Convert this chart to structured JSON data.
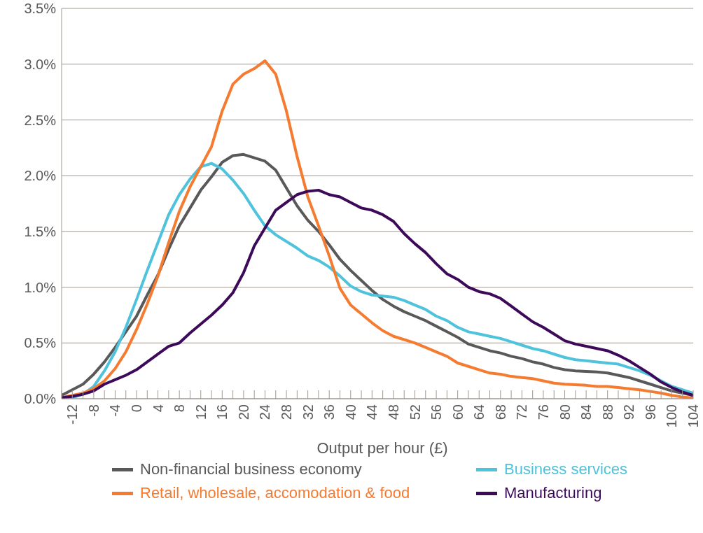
{
  "chart_data": {
    "type": "line",
    "xlabel": "Output per hour (£)",
    "x": [
      -14,
      -12,
      -10,
      -8,
      -6,
      -4,
      -2,
      0,
      2,
      4,
      6,
      8,
      10,
      12,
      14,
      16,
      18,
      20,
      22,
      24,
      26,
      28,
      30,
      32,
      34,
      36,
      38,
      40,
      42,
      44,
      46,
      48,
      50,
      52,
      54,
      56,
      58,
      60,
      62,
      64,
      66,
      68,
      70,
      72,
      74,
      76,
      78,
      80,
      82,
      84,
      86,
      88,
      90,
      92,
      94,
      96,
      98,
      100,
      102,
      104
    ],
    "series": [
      {
        "name": "Non-financial business economy",
        "color": "#595959",
        "values": [
          0.03,
          0.08,
          0.13,
          0.22,
          0.33,
          0.46,
          0.6,
          0.74,
          0.93,
          1.11,
          1.34,
          1.55,
          1.71,
          1.87,
          1.99,
          2.12,
          2.18,
          2.19,
          2.16,
          2.13,
          2.05,
          1.89,
          1.73,
          1.6,
          1.5,
          1.38,
          1.25,
          1.15,
          1.06,
          0.97,
          0.89,
          0.83,
          0.78,
          0.74,
          0.7,
          0.65,
          0.6,
          0.55,
          0.49,
          0.46,
          0.43,
          0.41,
          0.38,
          0.36,
          0.33,
          0.31,
          0.28,
          0.26,
          0.25,
          0.245,
          0.24,
          0.23,
          0.21,
          0.19,
          0.16,
          0.13,
          0.1,
          0.07,
          0.05,
          0.03
        ]
      },
      {
        "name": "Business services",
        "color": "#4fc3dc",
        "values": [
          0.0,
          0.01,
          0.04,
          0.11,
          0.25,
          0.42,
          0.64,
          0.89,
          1.15,
          1.4,
          1.65,
          1.83,
          1.97,
          2.08,
          2.11,
          2.06,
          1.96,
          1.84,
          1.69,
          1.55,
          1.47,
          1.41,
          1.35,
          1.28,
          1.24,
          1.18,
          1.1,
          1.01,
          0.96,
          0.93,
          0.92,
          0.91,
          0.88,
          0.84,
          0.8,
          0.74,
          0.7,
          0.64,
          0.6,
          0.58,
          0.56,
          0.54,
          0.51,
          0.48,
          0.45,
          0.43,
          0.4,
          0.37,
          0.35,
          0.34,
          0.33,
          0.32,
          0.31,
          0.28,
          0.25,
          0.21,
          0.16,
          0.11,
          0.08,
          0.05
        ]
      },
      {
        "name": "Retail, wholesale, accomodation & food",
        "color": "#f47b30",
        "values": [
          0.01,
          0.03,
          0.05,
          0.09,
          0.16,
          0.27,
          0.42,
          0.62,
          0.85,
          1.1,
          1.4,
          1.68,
          1.9,
          2.08,
          2.26,
          2.58,
          2.82,
          2.91,
          2.96,
          3.03,
          2.91,
          2.58,
          2.17,
          1.81,
          1.55,
          1.28,
          0.99,
          0.84,
          0.76,
          0.68,
          0.61,
          0.56,
          0.53,
          0.5,
          0.46,
          0.42,
          0.38,
          0.32,
          0.29,
          0.26,
          0.23,
          0.22,
          0.2,
          0.19,
          0.18,
          0.16,
          0.14,
          0.13,
          0.125,
          0.12,
          0.11,
          0.11,
          0.1,
          0.09,
          0.08,
          0.065,
          0.05,
          0.03,
          0.015,
          0.005
        ]
      },
      {
        "name": "Manufacturing",
        "color": "#3d0a5a",
        "values": [
          0.01,
          0.02,
          0.04,
          0.07,
          0.13,
          0.17,
          0.21,
          0.26,
          0.33,
          0.4,
          0.47,
          0.5,
          0.59,
          0.67,
          0.75,
          0.84,
          0.95,
          1.13,
          1.37,
          1.53,
          1.69,
          1.76,
          1.83,
          1.86,
          1.87,
          1.83,
          1.81,
          1.76,
          1.71,
          1.69,
          1.65,
          1.59,
          1.48,
          1.39,
          1.31,
          1.21,
          1.12,
          1.07,
          1.0,
          0.96,
          0.94,
          0.9,
          0.83,
          0.76,
          0.69,
          0.64,
          0.58,
          0.52,
          0.49,
          0.47,
          0.45,
          0.43,
          0.39,
          0.34,
          0.28,
          0.22,
          0.15,
          0.1,
          0.06,
          0.03
        ]
      }
    ],
    "xlim": [
      -14,
      104
    ],
    "xticks": [
      {
        "value": -14,
        "label": null
      },
      -12,
      {
        "value": -10,
        "label": null
      },
      -8,
      {
        "value": -6,
        "label": null
      },
      -4,
      {
        "value": -2,
        "label": null
      },
      0,
      {
        "value": 2,
        "label": null
      },
      4,
      {
        "value": 6,
        "label": null
      },
      8,
      {
        "value": 10,
        "label": null
      },
      12,
      {
        "value": 14,
        "label": null
      },
      16,
      {
        "value": 18,
        "label": null
      },
      20,
      {
        "value": 22,
        "label": null
      },
      24,
      {
        "value": 26,
        "label": null
      },
      28,
      {
        "value": 30,
        "label": null
      },
      32,
      {
        "value": 34,
        "label": null
      },
      36,
      {
        "value": 38,
        "label": null
      },
      40,
      {
        "value": 42,
        "label": null
      },
      44,
      {
        "value": 46,
        "label": null
      },
      48,
      {
        "value": 50,
        "label": null
      },
      52,
      {
        "value": 54,
        "label": null
      },
      56,
      {
        "value": 58,
        "label": null
      },
      60,
      {
        "value": 62,
        "label": null
      },
      64,
      {
        "value": 66,
        "label": null
      },
      68,
      {
        "value": 70,
        "label": null
      },
      72,
      {
        "value": 74,
        "label": null
      },
      76,
      {
        "value": 78,
        "label": null
      },
      80,
      {
        "value": 82,
        "label": null
      },
      84,
      {
        "value": 86,
        "label": null
      },
      88,
      {
        "value": 90,
        "label": null
      },
      92,
      {
        "value": 94,
        "label": null
      },
      96,
      {
        "value": 98,
        "label": null
      },
      100,
      {
        "value": 102,
        "label": null
      },
      104
    ],
    "ylim": [
      0,
      3.5
    ],
    "yticks": [
      {
        "value": 0,
        "label": "0.0%"
      },
      {
        "value": 0.5,
        "label": "0.5%"
      },
      {
        "value": 1,
        "label": "1.0%"
      },
      {
        "value": 1.5,
        "label": "1.5%"
      },
      {
        "value": 2,
        "label": "2.0%"
      },
      {
        "value": 2.5,
        "label": "2.5%"
      },
      {
        "value": 3,
        "label": "3.0%"
      },
      {
        "value": 3.5,
        "label": "3.5%"
      }
    ],
    "grid": "y",
    "legend": "bottom"
  }
}
